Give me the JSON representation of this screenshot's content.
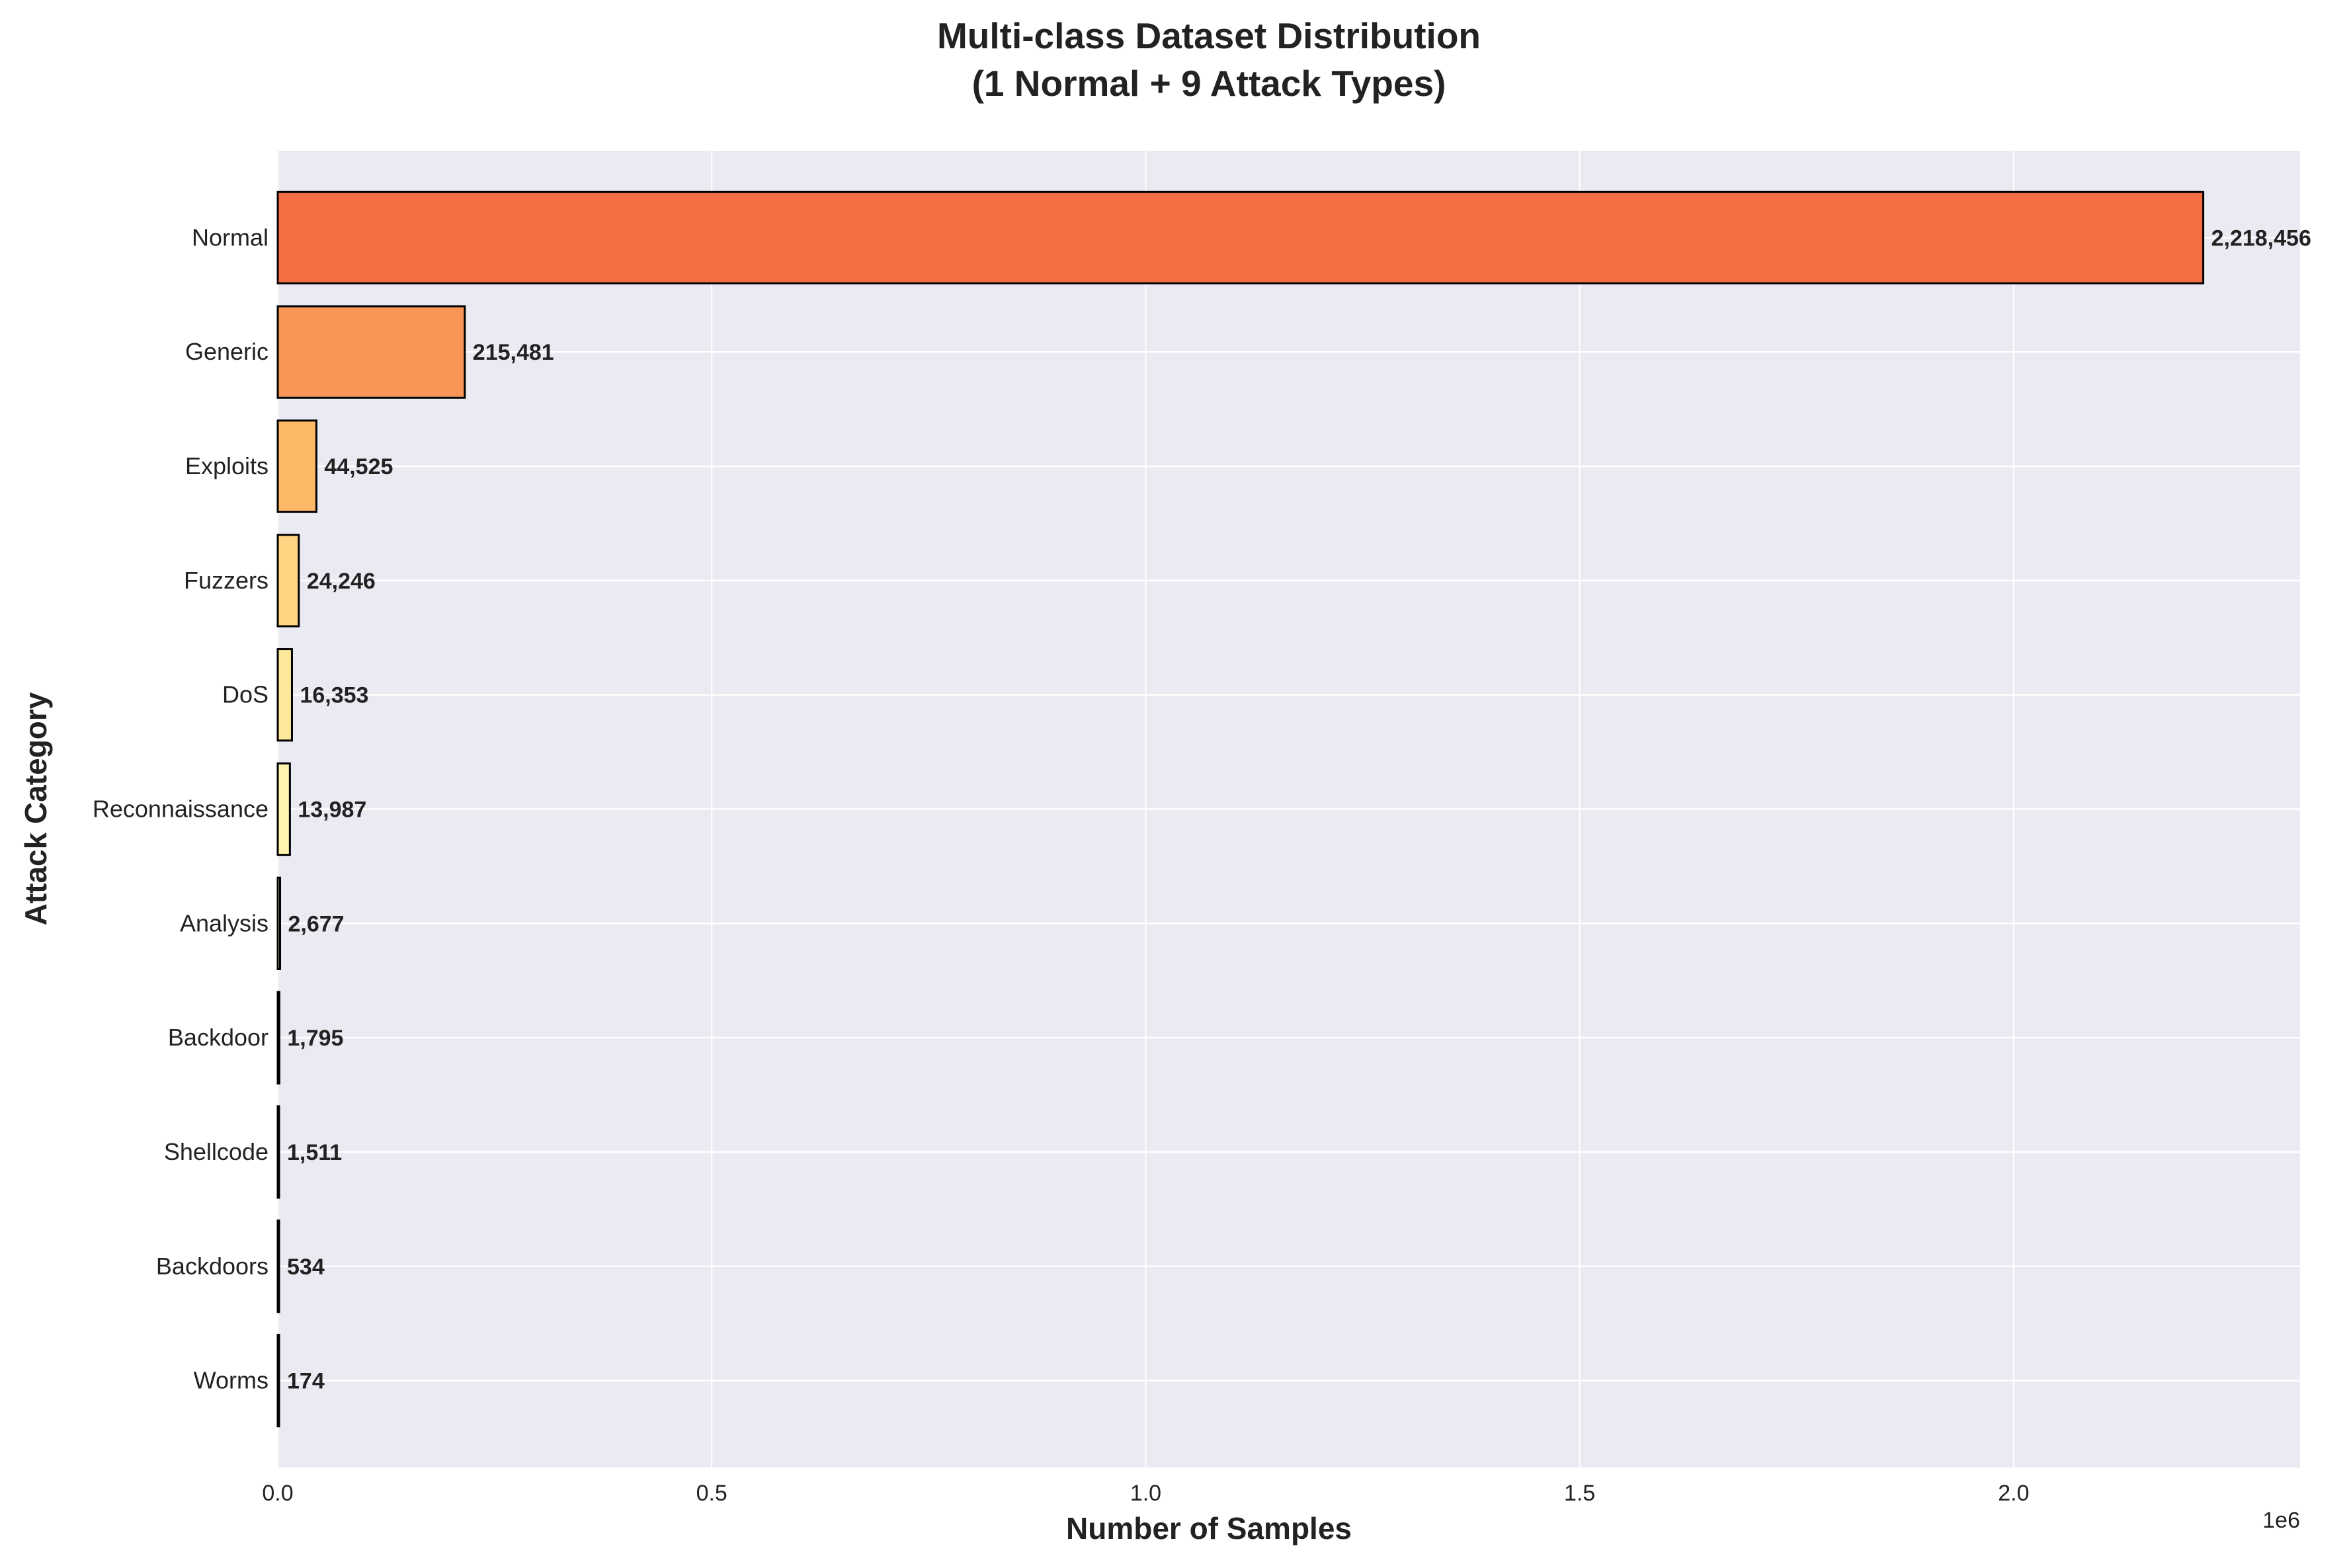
{
  "chart_data": {
    "type": "bar",
    "orientation": "horizontal",
    "title_line1": "Multi-class Dataset Distribution",
    "title_line2": "(1 Normal + 9 Attack Types)",
    "xlabel": "Number of Samples",
    "ylabel": "Attack Category",
    "x_offset_label": "1e6",
    "xlim": [
      0,
      2330000
    ],
    "x_ticks": [
      0,
      500000,
      1000000,
      1500000,
      2000000
    ],
    "x_tick_labels": [
      "0.0",
      "0.5",
      "1.0",
      "1.5",
      "2.0"
    ],
    "grid": true,
    "categories": [
      "Normal",
      "Generic",
      "Exploits",
      "Fuzzers",
      "DoS",
      "Reconnaissance",
      "Analysis",
      "Backdoor",
      "Shellcode",
      "Backdoors",
      "Worms"
    ],
    "values": [
      2218456,
      215481,
      44525,
      24246,
      16353,
      13987,
      2677,
      1795,
      1511,
      534,
      174
    ],
    "value_labels": [
      "2,218,456",
      "215,481",
      "44,525",
      "24,246",
      "16,353",
      "13,987",
      "2,677",
      "1,795",
      "1,511",
      "534",
      "174"
    ],
    "bar_colors": [
      "#f46d43",
      "#f99657",
      "#fdb966",
      "#fed683",
      "#fee99b",
      "#fff3b0",
      "#f4faad",
      "#e1f38f",
      "#c8e889",
      "#a8da7a",
      "#86ca70"
    ],
    "bar_edge_color": "#000000",
    "plot_background": "#eaeaf2"
  }
}
